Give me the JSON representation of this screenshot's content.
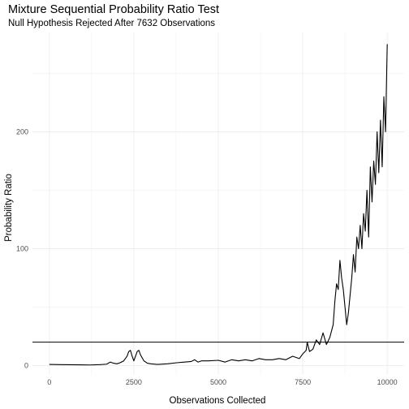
{
  "chart_data": {
    "type": "line",
    "title": "Mixture Sequential Probability Ratio Test",
    "subtitle": "Null Hypothesis Rejected After 7632 Observations",
    "xlabel": "Observations Collected",
    "ylabel": "Probability Ratio",
    "xlim": [
      -500,
      10500
    ],
    "ylim": [
      -8,
      285
    ],
    "x_ticks": [
      0,
      2500,
      5000,
      7500,
      10000
    ],
    "x_tick_labels": [
      "0",
      "2500",
      "5000",
      "7500",
      "10000"
    ],
    "y_ticks": [
      0,
      100,
      200
    ],
    "y_tick_labels": [
      "0",
      "100",
      "200"
    ],
    "grid": true,
    "threshold": {
      "y": 20
    },
    "series": [
      {
        "color": "#000000",
        "points": [
          [
            0,
            1
          ],
          [
            300,
            0.8
          ],
          [
            600,
            0.7
          ],
          [
            900,
            0.6
          ],
          [
            1200,
            0.5
          ],
          [
            1500,
            0.8
          ],
          [
            1700,
            1.2
          ],
          [
            1800,
            3
          ],
          [
            1900,
            2
          ],
          [
            2000,
            1.5
          ],
          [
            2100,
            2.5
          ],
          [
            2200,
            4
          ],
          [
            2300,
            8
          ],
          [
            2350,
            12
          ],
          [
            2400,
            13
          ],
          [
            2450,
            8
          ],
          [
            2500,
            4
          ],
          [
            2550,
            8
          ],
          [
            2600,
            12
          ],
          [
            2650,
            13
          ],
          [
            2700,
            9
          ],
          [
            2800,
            4
          ],
          [
            2900,
            2
          ],
          [
            3000,
            1.5
          ],
          [
            3200,
            1
          ],
          [
            3500,
            1.5
          ],
          [
            3800,
            2.5
          ],
          [
            4000,
            3
          ],
          [
            4200,
            3.5
          ],
          [
            4300,
            5
          ],
          [
            4400,
            3
          ],
          [
            4500,
            4
          ],
          [
            4700,
            4
          ],
          [
            5000,
            4.5
          ],
          [
            5200,
            3
          ],
          [
            5400,
            5
          ],
          [
            5600,
            4
          ],
          [
            5800,
            5
          ],
          [
            6000,
            4
          ],
          [
            6200,
            6
          ],
          [
            6400,
            5
          ],
          [
            6600,
            5
          ],
          [
            6800,
            6
          ],
          [
            7000,
            5
          ],
          [
            7200,
            8
          ],
          [
            7400,
            6
          ],
          [
            7500,
            10
          ],
          [
            7600,
            13
          ],
          [
            7632,
            20
          ],
          [
            7700,
            12
          ],
          [
            7800,
            14
          ],
          [
            7900,
            22
          ],
          [
            8000,
            18
          ],
          [
            8100,
            28
          ],
          [
            8200,
            18
          ],
          [
            8300,
            24
          ],
          [
            8400,
            35
          ],
          [
            8450,
            55
          ],
          [
            8500,
            70
          ],
          [
            8550,
            65
          ],
          [
            8600,
            90
          ],
          [
            8650,
            75
          ],
          [
            8700,
            65
          ],
          [
            8750,
            50
          ],
          [
            8800,
            35
          ],
          [
            8850,
            45
          ],
          [
            8900,
            60
          ],
          [
            8950,
            75
          ],
          [
            9000,
            95
          ],
          [
            9050,
            80
          ],
          [
            9100,
            110
          ],
          [
            9150,
            100
          ],
          [
            9200,
            120
          ],
          [
            9250,
            100
          ],
          [
            9300,
            130
          ],
          [
            9350,
            115
          ],
          [
            9400,
            150
          ],
          [
            9450,
            110
          ],
          [
            9500,
            170
          ],
          [
            9550,
            140
          ],
          [
            9600,
            175
          ],
          [
            9650,
            155
          ],
          [
            9700,
            200
          ],
          [
            9750,
            165
          ],
          [
            9800,
            210
          ],
          [
            9850,
            170
          ],
          [
            9900,
            230
          ],
          [
            9950,
            200
          ],
          [
            10000,
            275
          ]
        ]
      }
    ]
  }
}
